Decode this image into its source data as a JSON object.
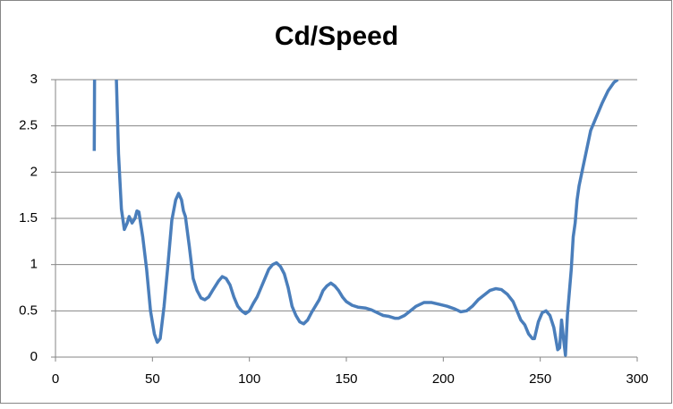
{
  "chart_data": {
    "type": "line",
    "title": "Cd/Speed",
    "color": "#4a7ebb",
    "grid": true,
    "xlim": [
      0,
      300
    ],
    "xticks": [
      0,
      50,
      100,
      150,
      200,
      250,
      300
    ],
    "ylim": [
      0,
      3
    ],
    "yticks": [
      0,
      0.5,
      1,
      1.5,
      2,
      2.5,
      3
    ],
    "x": [
      20,
      20.2,
      31,
      32.5,
      34,
      35.5,
      37,
      38,
      39.5,
      41,
      42,
      43,
      45,
      47,
      49,
      51,
      52.5,
      54,
      56,
      58,
      60,
      62,
      63.5,
      65,
      66,
      67,
      69,
      71,
      73,
      75,
      77,
      79,
      81,
      84,
      86,
      88,
      90,
      92,
      94,
      96,
      98,
      100,
      102,
      104,
      106,
      108,
      110,
      112,
      114,
      116,
      118,
      120,
      122,
      124,
      126,
      128,
      130,
      132,
      134,
      136,
      138,
      140,
      142,
      144,
      146,
      148,
      150,
      153,
      156,
      160,
      163,
      166,
      169,
      172,
      175,
      177,
      180,
      183,
      186,
      190,
      194,
      198,
      202,
      206,
      209,
      212,
      215,
      218,
      221,
      224,
      227,
      230,
      233,
      236,
      238,
      240,
      242,
      244,
      246,
      247,
      249,
      251,
      253,
      255,
      257,
      258,
      259,
      260,
      261,
      262,
      263,
      264,
      266,
      267,
      268,
      269,
      270,
      272,
      274,
      276,
      279,
      282,
      285,
      288,
      290
    ],
    "values": [
      2.23,
      3.3,
      3.3,
      2.2,
      1.6,
      1.38,
      1.45,
      1.52,
      1.45,
      1.5,
      1.58,
      1.57,
      1.3,
      0.95,
      0.5,
      0.25,
      0.16,
      0.2,
      0.55,
      1.0,
      1.48,
      1.7,
      1.77,
      1.7,
      1.58,
      1.52,
      1.2,
      0.85,
      0.72,
      0.64,
      0.62,
      0.65,
      0.72,
      0.82,
      0.87,
      0.85,
      0.78,
      0.65,
      0.55,
      0.5,
      0.47,
      0.5,
      0.58,
      0.65,
      0.75,
      0.85,
      0.95,
      1.0,
      1.02,
      0.98,
      0.9,
      0.75,
      0.55,
      0.45,
      0.38,
      0.36,
      0.4,
      0.48,
      0.55,
      0.62,
      0.72,
      0.77,
      0.8,
      0.77,
      0.72,
      0.65,
      0.6,
      0.56,
      0.54,
      0.53,
      0.51,
      0.48,
      0.45,
      0.44,
      0.42,
      0.42,
      0.45,
      0.5,
      0.55,
      0.59,
      0.59,
      0.57,
      0.55,
      0.52,
      0.49,
      0.5,
      0.55,
      0.62,
      0.67,
      0.72,
      0.74,
      0.73,
      0.68,
      0.6,
      0.5,
      0.4,
      0.35,
      0.25,
      0.2,
      0.2,
      0.38,
      0.48,
      0.5,
      0.45,
      0.32,
      0.2,
      0.08,
      0.1,
      0.4,
      0.2,
      0.02,
      0.45,
      0.95,
      1.3,
      1.45,
      1.7,
      1.85,
      2.05,
      2.25,
      2.45,
      2.6,
      2.75,
      2.88,
      2.97,
      3.0
    ]
  }
}
